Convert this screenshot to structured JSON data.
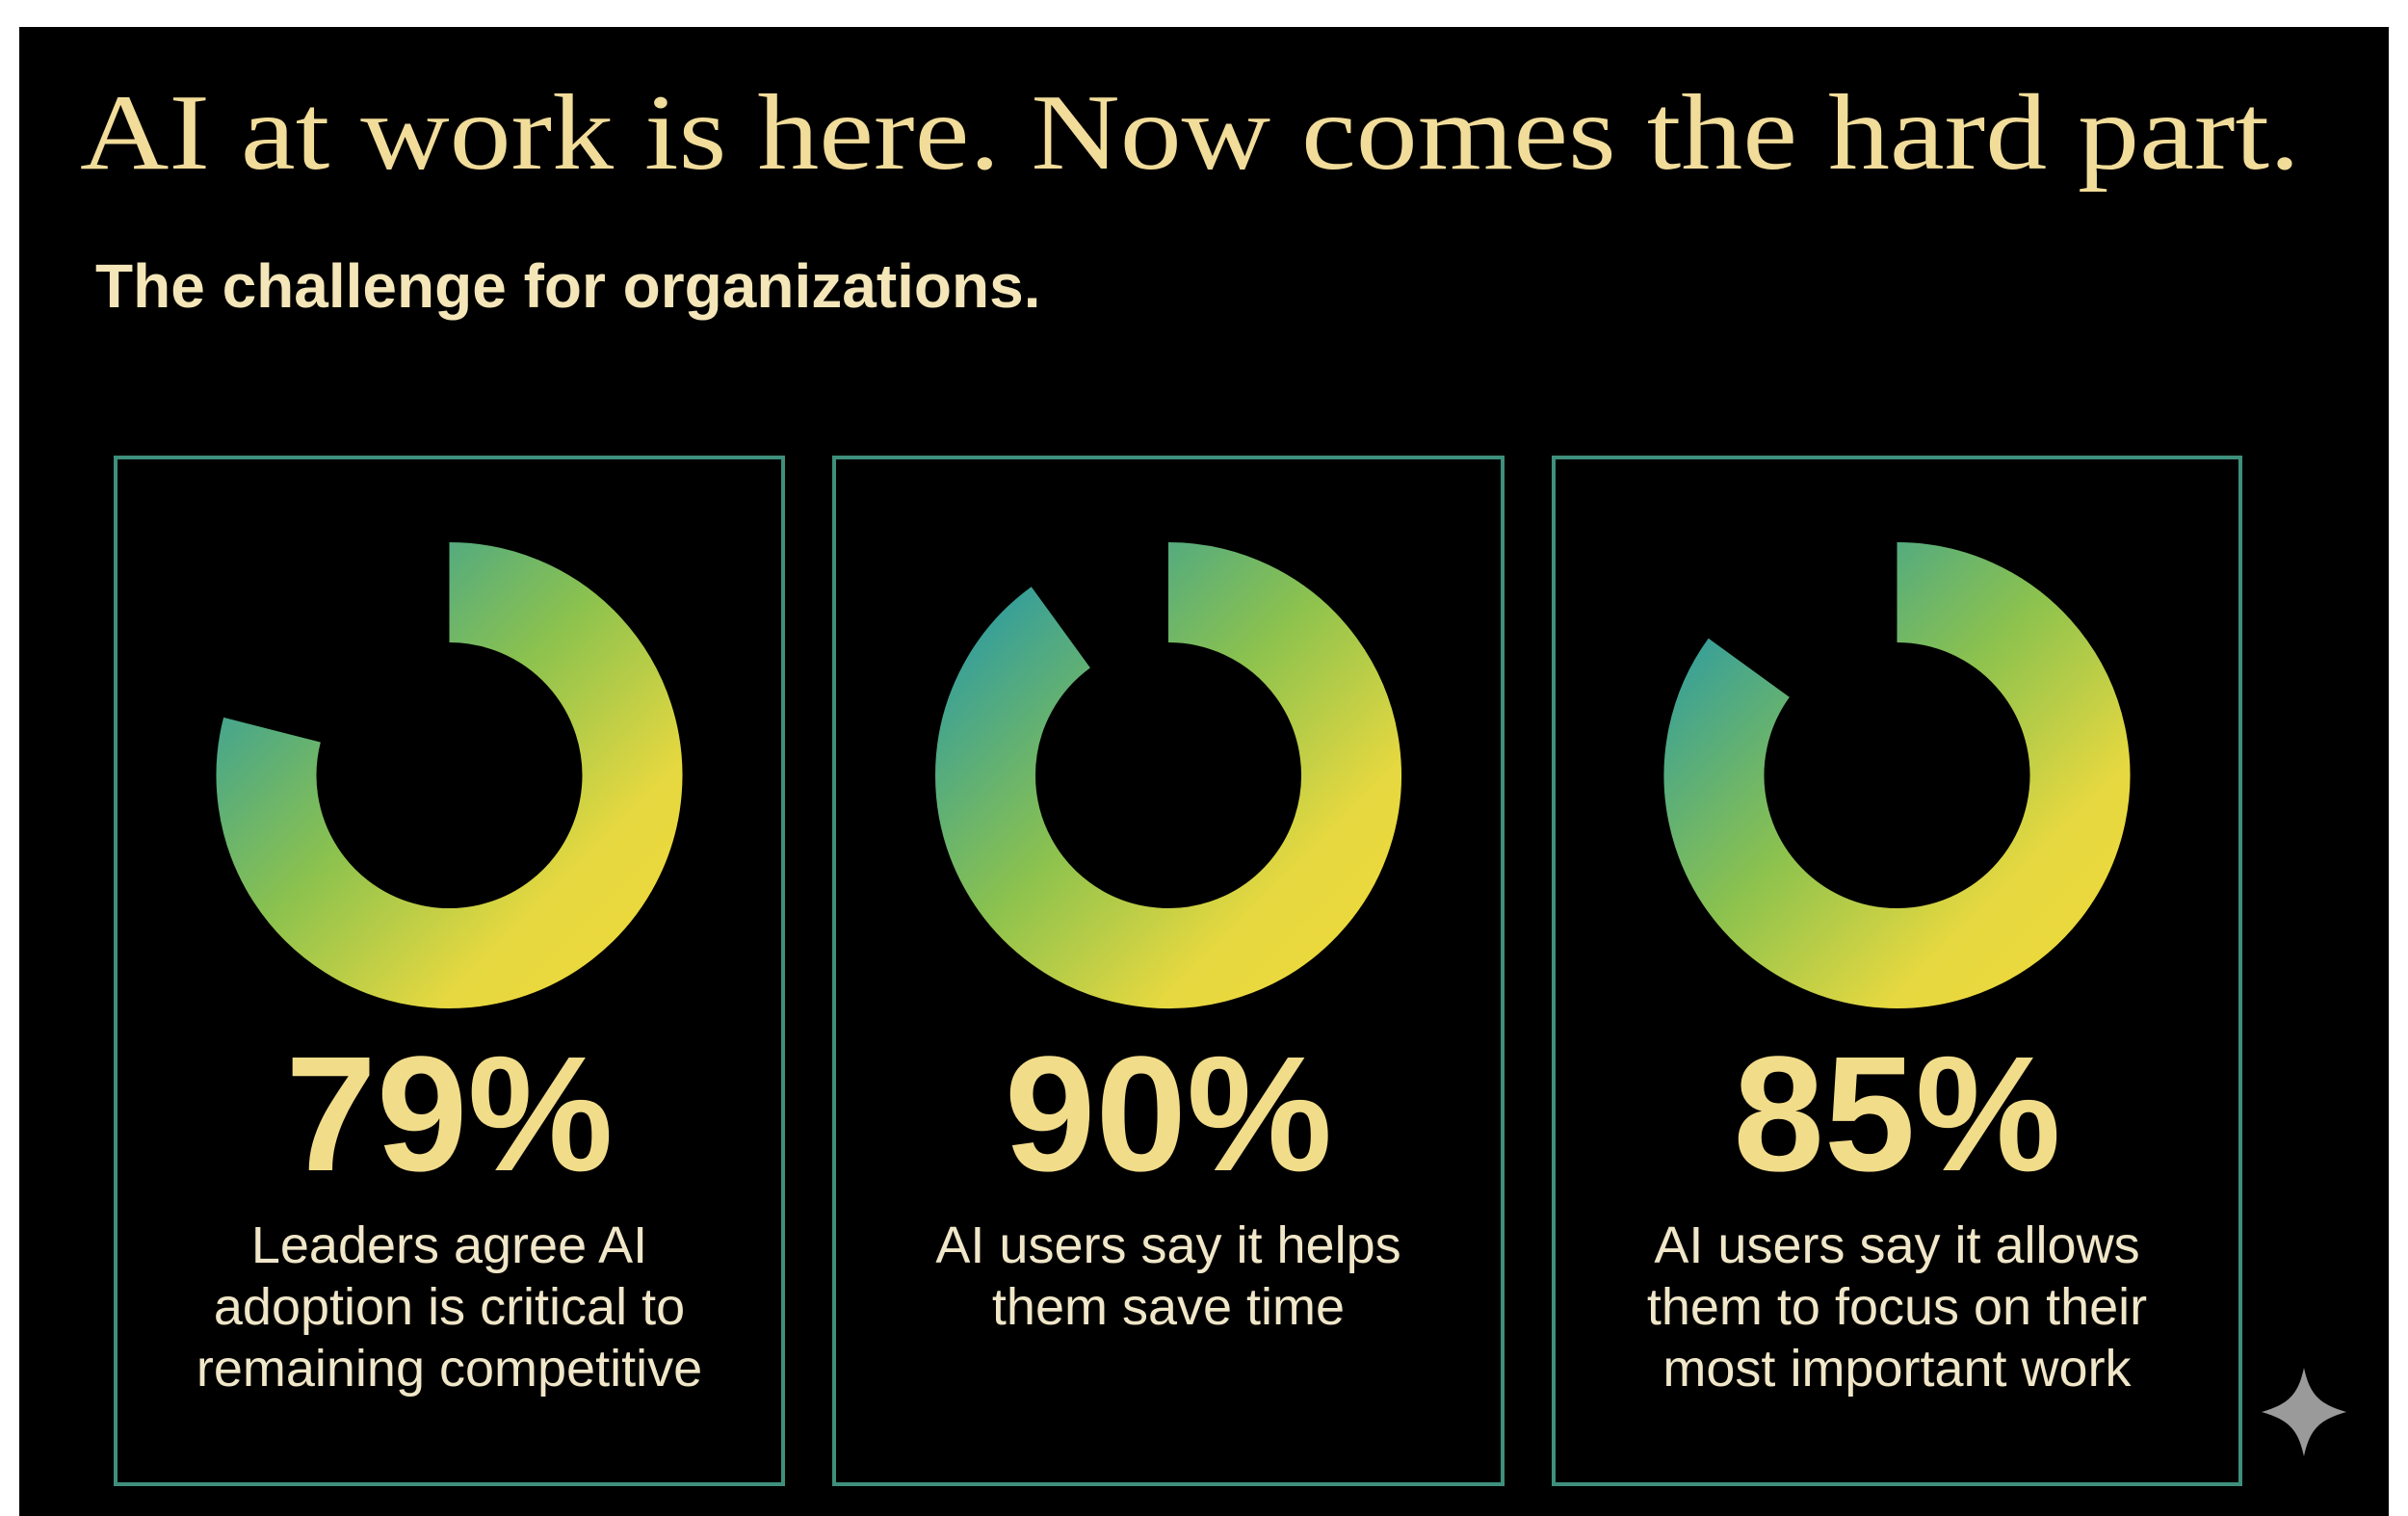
{
  "header": {
    "title": "AI at work is here. Now comes the hard part.",
    "subtitle": "The challenge for organizations."
  },
  "chart_data": [
    {
      "type": "donut",
      "values": [
        79
      ],
      "value_labels": [
        "79%"
      ],
      "caption": [
        "Leaders agree AI",
        "adoption is critical to",
        "remaining competitive"
      ]
    },
    {
      "type": "donut",
      "values": [
        90
      ],
      "value_labels": [
        "90%"
      ],
      "caption": [
        "AI users say it helps",
        "them save time"
      ]
    },
    {
      "type": "donut",
      "values": [
        85
      ],
      "value_labels": [
        "85%"
      ],
      "caption": [
        "AI users say it allows",
        "them to focus on their",
        "most important work"
      ]
    }
  ]
}
